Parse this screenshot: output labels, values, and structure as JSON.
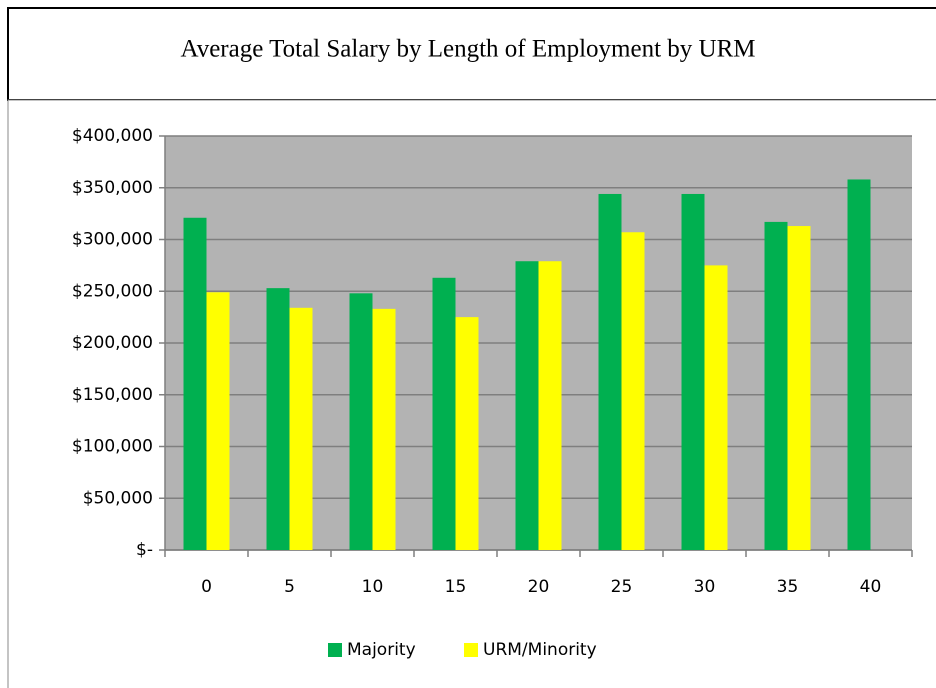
{
  "chart_data": {
    "type": "bar",
    "title": "Average Total Salary by Length of Employment by URM",
    "categories": [
      "0",
      "5",
      "10",
      "15",
      "20",
      "25",
      "30",
      "35",
      "40"
    ],
    "series": [
      {
        "name": "Majority",
        "color": "#00b050",
        "values": [
          321000,
          253000,
          248000,
          263000,
          279000,
          344000,
          344000,
          317000,
          358000
        ]
      },
      {
        "name": "URM/Minority",
        "color": "#ffff00",
        "values": [
          249000,
          234000,
          233000,
          225000,
          279000,
          307000,
          275000,
          313000,
          null
        ]
      }
    ],
    "ylim": [
      0,
      400000
    ],
    "yticks": [
      {
        "value": 0,
        "label": "$-"
      },
      {
        "value": 50000,
        "label": "$50,000"
      },
      {
        "value": 100000,
        "label": "$100,000"
      },
      {
        "value": 150000,
        "label": "$150,000"
      },
      {
        "value": 200000,
        "label": "$200,000"
      },
      {
        "value": 250000,
        "label": "$250,000"
      },
      {
        "value": 300000,
        "label": "$300,000"
      },
      {
        "value": 350000,
        "label": "$350,000"
      },
      {
        "value": 400000,
        "label": "$400,000"
      }
    ],
    "grid": true,
    "legend": "bottom"
  }
}
